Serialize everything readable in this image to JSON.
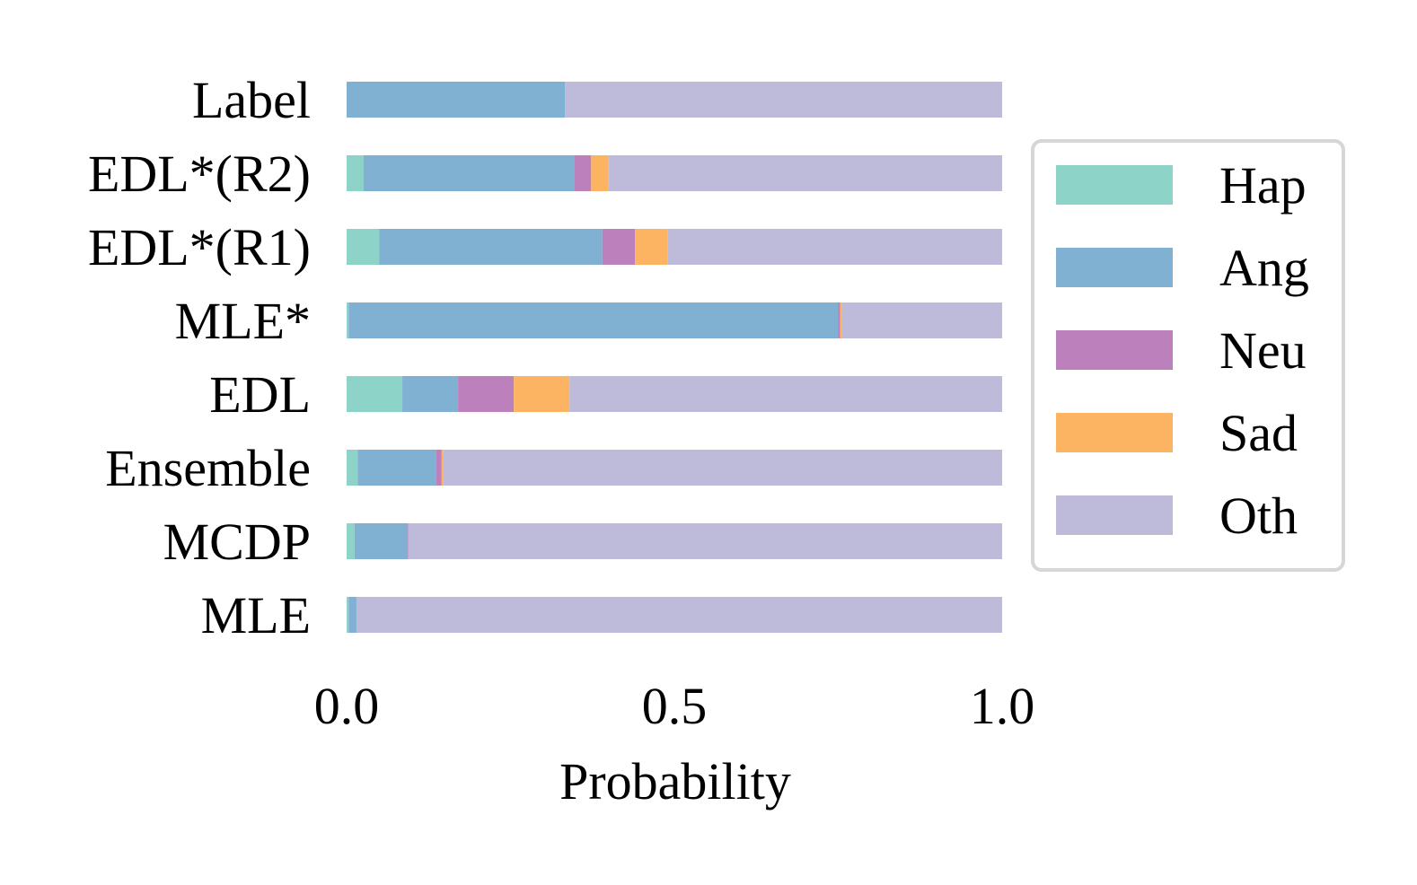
{
  "chart_data": {
    "type": "bar",
    "orientation": "horizontal",
    "stacked": true,
    "categories": [
      "Label",
      "EDL*(R2)",
      "EDL*(R1)",
      "MLE*",
      "EDL",
      "Ensemble",
      "MCDP",
      "MLE"
    ],
    "series": [
      {
        "name": "Hap",
        "color": "#8dd3c7",
        "values": [
          0.0,
          0.026,
          0.05,
          0.003,
          0.085,
          0.017,
          0.012,
          0.003
        ]
      },
      {
        "name": "Ang",
        "color": "#80b1d3",
        "values": [
          0.333,
          0.321,
          0.34,
          0.747,
          0.085,
          0.12,
          0.08,
          0.012
        ]
      },
      {
        "name": "Neu",
        "color": "#bc80bd",
        "values": [
          0.0,
          0.026,
          0.05,
          0.003,
          0.085,
          0.008,
          0.002,
          0.0
        ]
      },
      {
        "name": "Sad",
        "color": "#fdb462",
        "values": [
          0.0,
          0.026,
          0.05,
          0.002,
          0.085,
          0.003,
          0.0,
          0.0
        ]
      },
      {
        "name": "Oth",
        "color": "#bebada",
        "values": [
          0.667,
          0.601,
          0.51,
          0.245,
          0.66,
          0.852,
          0.906,
          0.985
        ]
      }
    ],
    "xlabel": "Probability",
    "ylabel": "",
    "title": "",
    "xlim": [
      0,
      1
    ],
    "xticks": [
      "0.0",
      "0.5",
      "1.0"
    ],
    "grid": false,
    "legend_position": "right"
  }
}
